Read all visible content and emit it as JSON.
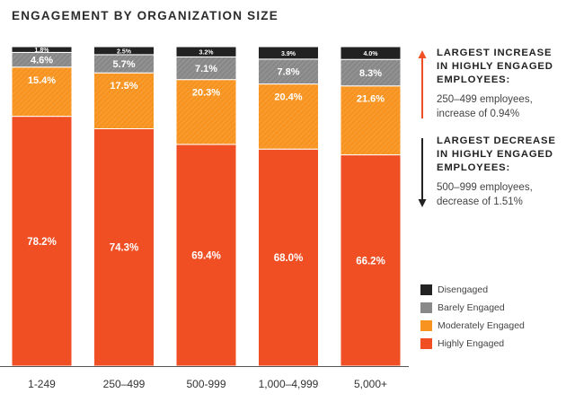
{
  "title": "ENGAGEMENT BY ORGANIZATION SIZE",
  "colors": {
    "highly": "#f04e23",
    "moderately": "#f7931e",
    "barely": "#888888",
    "disengaged": "#222222",
    "axis": "#555555"
  },
  "callouts": {
    "increase": {
      "icon": "arrow-up-icon",
      "heading_lines": [
        "LARGEST INCREASE",
        "IN HIGHLY ENGAGED",
        "EMPLOYEES:"
      ],
      "body_lines": [
        "250–499 employees,",
        "increase of 0.94%"
      ]
    },
    "decrease": {
      "icon": "arrow-down-icon",
      "heading_lines": [
        "LARGEST DECREASE",
        "IN HIGHLY ENGAGED",
        "EMPLOYEES:"
      ],
      "body_lines": [
        "500–999 employees,",
        "decrease of 1.51%"
      ]
    }
  },
  "chart_data": {
    "type": "bar",
    "stacked": true,
    "title": "ENGAGEMENT BY ORGANIZATION SIZE",
    "categories": [
      "1-249",
      "250–499",
      "500-999",
      "1,000–4,999",
      "5,000+"
    ],
    "series": [
      {
        "name": "Highly Engaged",
        "values": [
          78.2,
          74.3,
          69.4,
          68.0,
          66.2
        ],
        "labels": [
          "78.2%",
          "74.3%",
          "69.4%",
          "68.0%",
          "66.2%"
        ]
      },
      {
        "name": "Moderately Engaged",
        "values": [
          15.4,
          17.5,
          20.3,
          20.4,
          21.6
        ],
        "labels": [
          "15.4%",
          "17.5%",
          "20.3%",
          "20.4%",
          "21.6%"
        ]
      },
      {
        "name": "Barely Engaged",
        "values": [
          4.6,
          5.7,
          7.1,
          7.8,
          8.3
        ],
        "labels": [
          "4.6%",
          "5.7%",
          "7.1%",
          "7.8%",
          "8.3%"
        ]
      },
      {
        "name": "Disengaged",
        "values": [
          1.8,
          2.5,
          3.2,
          3.9,
          4.0
        ],
        "labels": [
          "1.8%",
          "2.5%",
          "3.2%",
          "3.9%",
          "4.0%"
        ]
      }
    ],
    "legend_order": [
      "Disengaged",
      "Barely Engaged",
      "Moderately Engaged",
      "Highly Engaged"
    ],
    "legend_position": "right",
    "ylim": [
      0,
      100
    ],
    "grid": false
  }
}
